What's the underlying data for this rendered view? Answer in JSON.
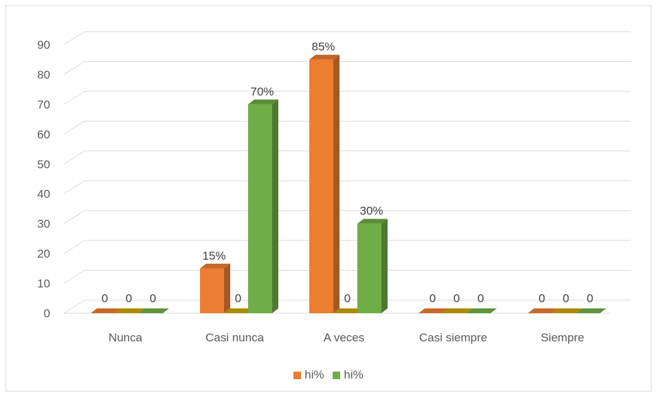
{
  "chart_data": {
    "type": "bar",
    "categories": [
      "Nunca",
      "Casi nunca",
      "A veces",
      "Casi siempre",
      "Siempre"
    ],
    "series": [
      {
        "name": "hi%",
        "values": [
          0,
          15,
          85,
          0,
          0
        ],
        "labels": [
          "0",
          "15%",
          "85%",
          "0",
          "0"
        ],
        "color": "#ED7D31"
      },
      {
        "name": "",
        "values": [
          0,
          0,
          0,
          0,
          0
        ],
        "labels": [
          "0",
          "0",
          "0",
          "0",
          "0"
        ],
        "color": "#C9A400"
      },
      {
        "name": "hi%",
        "values": [
          0,
          70,
          30,
          0,
          0
        ],
        "labels": [
          "0",
          "70%",
          "30%",
          "0",
          "0"
        ],
        "color": "#70AD47"
      }
    ],
    "yticks": [
      "0",
      "10",
      "20",
      "30",
      "40",
      "50",
      "60",
      "70",
      "80",
      "90"
    ],
    "ylim": [
      0,
      90
    ],
    "grid": true,
    "legend_position": "bottom"
  },
  "legend": [
    {
      "label": "hi%",
      "color": "#ED7D31"
    },
    {
      "label": "hi%",
      "color": "#70AD47"
    }
  ]
}
